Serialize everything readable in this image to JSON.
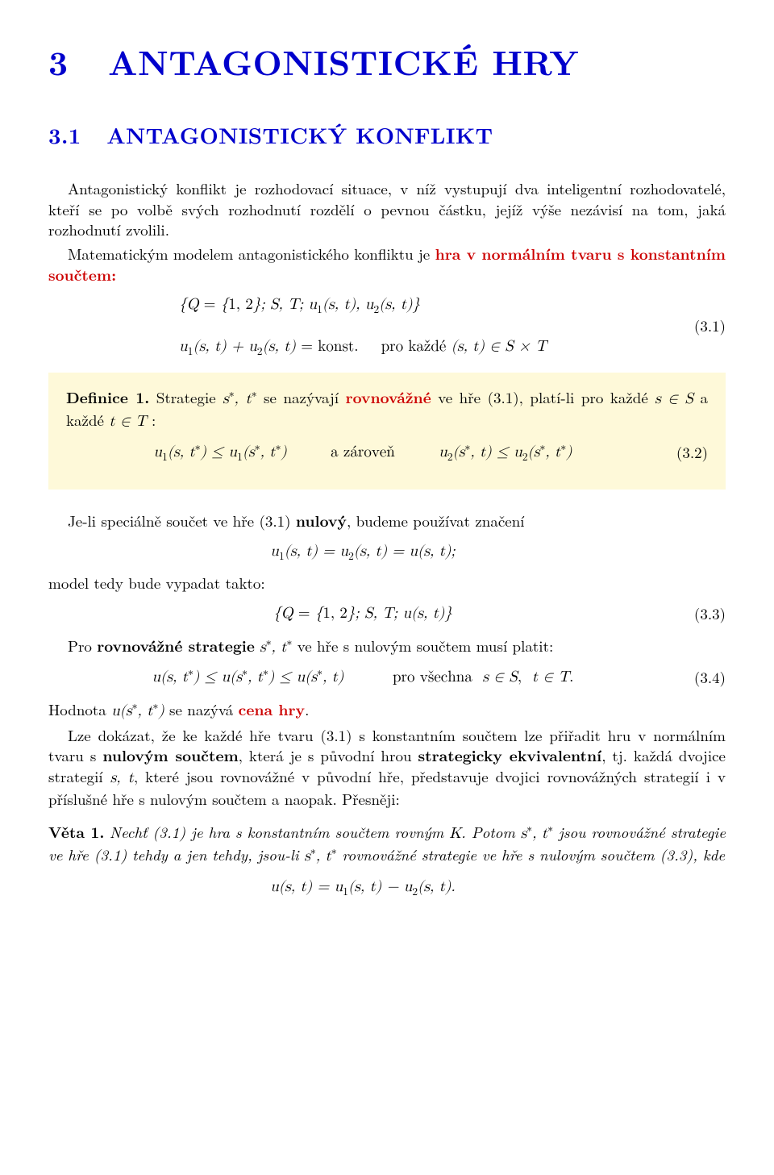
{
  "chapter": {
    "number": "3",
    "title": "ANTAGONISTICKÉ HRY"
  },
  "section": {
    "number": "3.1",
    "title": "ANTAGONISTICKÝ KONFLIKT"
  },
  "intro_para": "Antagonistický konflikt je rozhodovací situace, v níž vystupují dva inteligentní rozhodovatelé, kteří se po volbě svých rozhodnutí rozdělí o pevnou částku, jejíž výše nezávisí na tom, jaká rozhodnutí zvolili.",
  "model_para_pre": "Matematickým modelem antagonistického konfliktu je ",
  "model_term": "hra v normálním tvaru s konstantním součtem:",
  "eq31_line1": "{Q = {1, 2}; S, T; u₁(s, t), u₂(s, t)}",
  "eq31_line2": "u₁(s, t) + u₂(s, t) = konst.   pro každé (s, t) ∈ S × T",
  "eq31_num": "(3.1)",
  "def_head": "Definice 1.",
  "def_pre": " Strategie ",
  "def_strat": "s*, t*",
  "def_mid": " se nazývají ",
  "def_term": "rovnovážné",
  "def_post": " ve hře (3.1), platí-li pro každé s ∈ S a každé t ∈ T :",
  "eq32_left": "u₁(s, t*) ≤ u₁(s*, t*)",
  "eq32_join": "a zároveň",
  "eq32_right": "u₂(s*, t) ≤ u₂(s*, t*)",
  "eq32_num": "(3.2)",
  "spec_para": "Je-li speciálně součet ve hře (3.1) ",
  "spec_bold": "nulový",
  "spec_post": ", budeme používat značení",
  "eq_notace": "u₁(s, t) = u₂(s, t) = u(s, t);",
  "model_form": "model tedy bude vypadat takto:",
  "eq33": "{Q = {1, 2}; S, T; u(s, t)}",
  "eq33_num": "(3.3)",
  "rov_pre": "Pro ",
  "rov_bold": "rovnovážné strategie",
  "rov_mid": " s*, t* ve hře s nulovým součtem musí platit:",
  "eq34_left": "u(s, t*) ≤ u(s*, t*) ≤ u(s*, t)",
  "eq34_right": "pro všechna  s ∈ S,  t ∈ T.",
  "eq34_num": "(3.4)",
  "cena_pre": "Hodnota u(s*, t*) se nazývá ",
  "cena_term": "cena hry",
  "cena_post": ".",
  "ekv_para_1": "Lze dokázat, že ke každé hře tvaru (3.1) s konstantním součtem lze přiřadit hru v normálním tvaru s ",
  "ekv_bold1": "nulovým součtem",
  "ekv_mid": ", která je s původní hrou ",
  "ekv_bold2": "strategicky ekvivalentní",
  "ekv_para_2": ", tj. každá dvojice strategií s, t, které jsou rovnovážné v původní hře, představuje dvojici rovnovážných strategií i v příslušné hře s nulovým součtem a naopak. Přesněji:",
  "thm_head": "Věta 1.",
  "thm_body": " Nechť (3.1) je hra s konstantním součtem rovným K. Potom s*, t* jsou rovnovážné strategie ve hře (3.1) tehdy a jen tehdy, jsou-li s*, t* rovnovážné strategie ve hře s nulovým součtem (3.3), kde",
  "eq_thm": "u(s, t) = u₁(s, t) − u₂(s, t).",
  "colors": {
    "heading": "#0000cc",
    "accent": "#cc0000",
    "defbg": "#fef9d9",
    "text": "#000000"
  }
}
